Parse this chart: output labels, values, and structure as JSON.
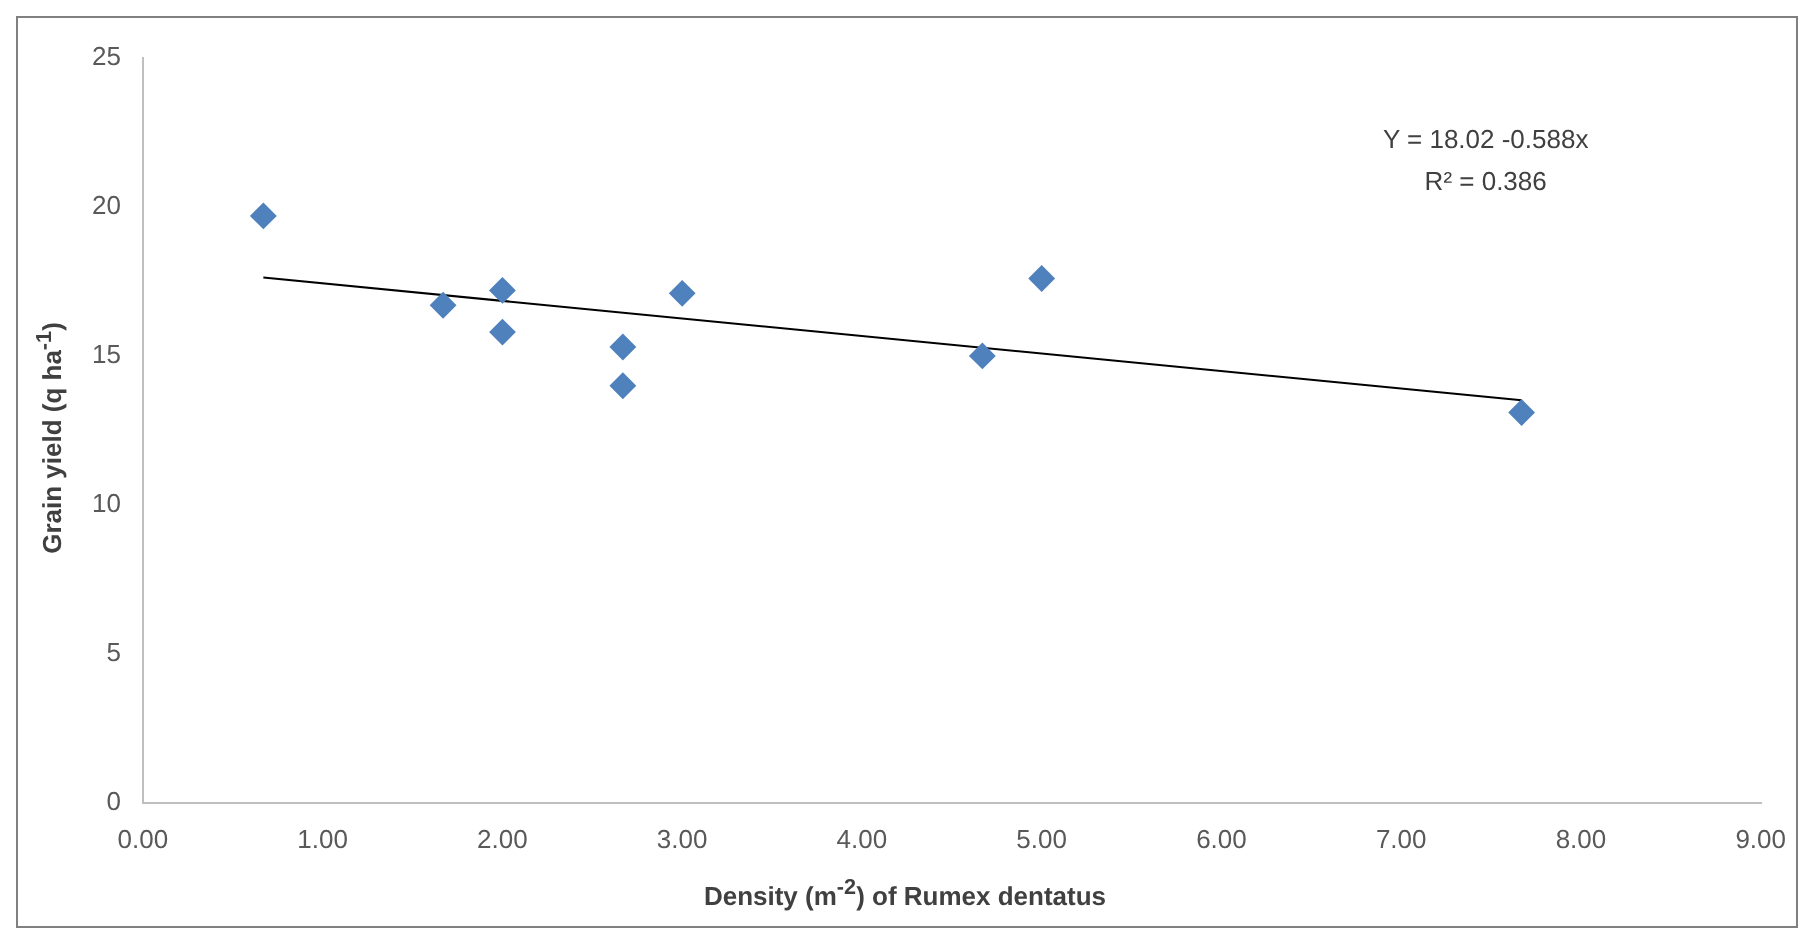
{
  "chart_data": {
    "type": "scatter",
    "xlabel": "Density (m$^{-2}$) of Rumex dentatus",
    "ylabel": "Grain yield (q ha$^{-1}$)",
    "annotations": [
      "Y = 18.02 -0.588x",
      "R² = 0.386"
    ],
    "series": [
      {
        "type": "scatter",
        "color": "#4f81bd",
        "marker": "diamond",
        "x": [
          0.67,
          1.67,
          2.0,
          2.0,
          2.67,
          2.67,
          3.0,
          4.67,
          5.0,
          7.67
        ],
        "values": [
          19.7,
          16.7,
          17.2,
          15.8,
          15.3,
          14.0,
          17.1,
          15.0,
          17.6,
          13.1
        ]
      },
      {
        "type": "line",
        "color": "#000000",
        "marker": "none",
        "x": [
          0.67,
          7.67
        ],
        "values": [
          17.63,
          13.51
        ]
      }
    ],
    "xlim": [
      0,
      9
    ],
    "xticks": [
      {
        "value": 0,
        "label": "0.00"
      },
      {
        "value": 1,
        "label": "1.00"
      },
      {
        "value": 2,
        "label": "2.00"
      },
      {
        "value": 3,
        "label": "3.00"
      },
      {
        "value": 4,
        "label": "4.00"
      },
      {
        "value": 5,
        "label": "5.00"
      },
      {
        "value": 6,
        "label": "6.00"
      },
      {
        "value": 7,
        "label": "7.00"
      },
      {
        "value": 8,
        "label": "8.00"
      },
      {
        "value": 9,
        "label": "9.00"
      }
    ],
    "ylim": [
      0,
      25
    ],
    "yticks": [
      0,
      5,
      10,
      15,
      20,
      25
    ],
    "grid": false,
    "legend": false
  }
}
